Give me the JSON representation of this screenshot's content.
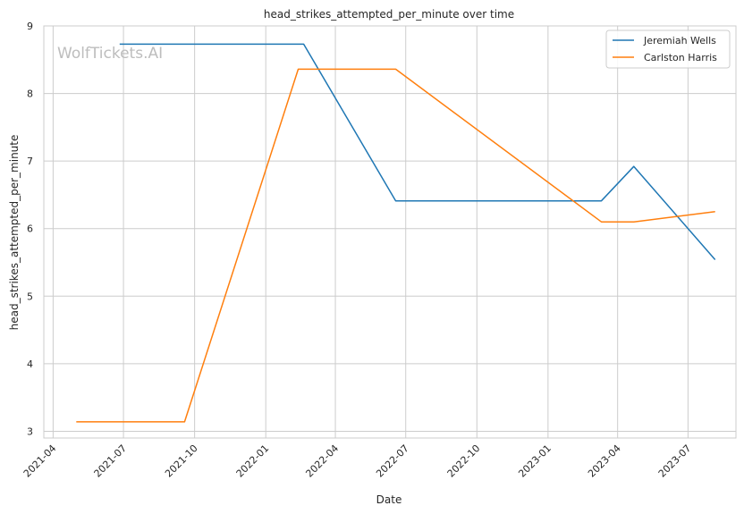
{
  "chart_data": {
    "type": "line",
    "title": "head_strikes_attempted_per_minute over time",
    "xlabel": "Date",
    "ylabel": "head_strikes_attempted_per_minute",
    "watermark": "WolfTickets.AI",
    "x_ticks": [
      "2021-04",
      "2021-07",
      "2021-10",
      "2022-01",
      "2022-04",
      "2022-07",
      "2022-10",
      "2023-01",
      "2023-04",
      "2023-07"
    ],
    "y_ticks": [
      3,
      4,
      5,
      6,
      7,
      8,
      9
    ],
    "xlim": [
      "2021-03-20",
      "2023-09-01"
    ],
    "ylim": [
      2.9,
      9.0
    ],
    "grid": true,
    "legend_position": "top-right",
    "series": [
      {
        "name": "Jeremiah Wells",
        "color": "#1f77b4",
        "x": [
          "2021-06-26",
          "2022-02-19",
          "2022-06-18",
          "2023-03-11",
          "2023-04-22",
          "2023-08-05"
        ],
        "y": [
          8.73,
          8.73,
          6.41,
          6.41,
          6.92,
          5.54
        ]
      },
      {
        "name": "Carlston Harris",
        "color": "#ff7f0e",
        "x": [
          "2021-05-01",
          "2021-09-18",
          "2022-02-12",
          "2022-06-18",
          "2023-03-11",
          "2023-04-22",
          "2023-08-05"
        ],
        "y": [
          3.14,
          3.14,
          8.36,
          8.36,
          6.1,
          6.1,
          6.25
        ]
      }
    ]
  }
}
